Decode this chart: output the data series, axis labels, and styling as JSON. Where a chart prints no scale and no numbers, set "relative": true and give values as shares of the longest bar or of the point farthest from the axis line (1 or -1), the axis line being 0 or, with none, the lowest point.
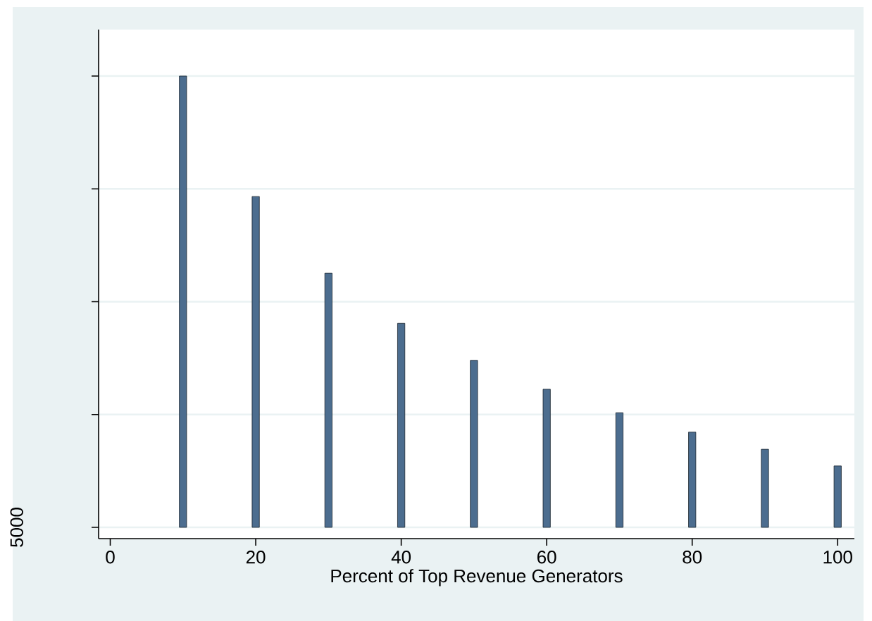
{
  "chart_data": {
    "type": "bar",
    "relative": true,
    "xlabel": "Percent of Top Revenue Generators",
    "x": [
      10,
      20,
      30,
      40,
      50,
      60,
      70,
      80,
      90,
      100
    ],
    "values": [
      1,
      0.733,
      0.563,
      0.452,
      0.37,
      0.306,
      0.254,
      0.211,
      0.173,
      0.136
    ],
    "color": "#4c6d8f",
    "xlim": [
      -1.6,
      102.3
    ],
    "xticks": [
      0,
      20,
      40,
      60,
      80,
      100
    ],
    "grid": "y",
    "annotations": [
      "5000"
    ]
  }
}
